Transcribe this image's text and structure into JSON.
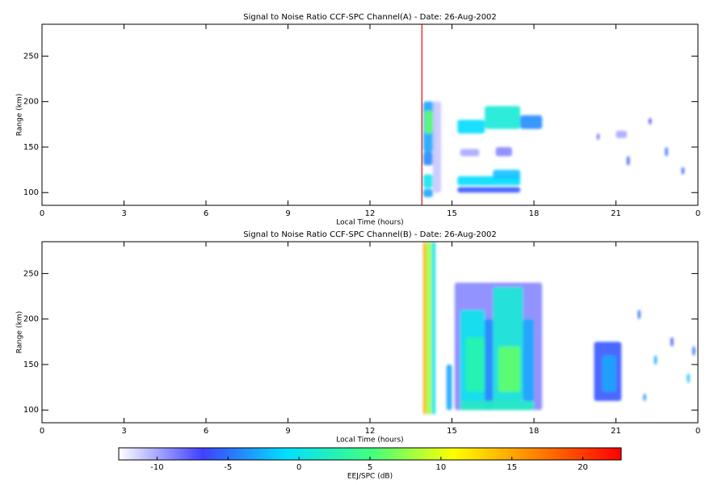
{
  "chart_data": [
    {
      "type": "heatmap",
      "title": "Signal to Noise Ratio CCF-SPC Channel(A) - Date: 26-Aug-2002",
      "x_label": "Local Time (hours)",
      "y_label": "Range (km)",
      "xlim": [
        0,
        24
      ],
      "xticks": [
        0,
        3,
        6,
        9,
        12,
        15,
        18,
        21,
        {
          "value": 24,
          "label": "0"
        }
      ],
      "ylim": [
        86,
        285
      ],
      "yticks": [
        100,
        150,
        200,
        250
      ],
      "marker_x": 13.9,
      "marker_color": "#ff0000",
      "cells": [
        [
          13.95,
          14.35,
          145,
          200,
          -3
        ],
        [
          14.0,
          14.3,
          165,
          190,
          6
        ],
        [
          13.95,
          14.3,
          130,
          145,
          -4
        ],
        [
          13.95,
          14.3,
          105,
          120,
          0
        ],
        [
          13.95,
          14.3,
          95,
          104,
          -3
        ],
        [
          14.3,
          14.6,
          100,
          200,
          -11
        ],
        [
          15.2,
          16.2,
          165,
          180,
          -1
        ],
        [
          16.2,
          17.5,
          170,
          195,
          1
        ],
        [
          17.5,
          18.3,
          170,
          185,
          -4
        ],
        [
          15.2,
          17.5,
          108,
          118,
          -1
        ],
        [
          16.5,
          17.5,
          115,
          125,
          -2
        ],
        [
          15.2,
          17.5,
          100,
          106,
          -6
        ],
        [
          16.6,
          17.2,
          140,
          150,
          -9
        ],
        [
          15.3,
          16.0,
          140,
          148,
          -10
        ],
        [
          20.3,
          20.4,
          158,
          165,
          -8
        ],
        [
          21.4,
          21.5,
          130,
          140,
          -6
        ],
        [
          22.2,
          22.3,
          175,
          182,
          -7
        ],
        [
          22.8,
          22.9,
          140,
          150,
          -5
        ],
        [
          23.4,
          23.5,
          120,
          128,
          -6
        ],
        [
          21.0,
          21.4,
          160,
          168,
          -10
        ]
      ]
    },
    {
      "type": "heatmap",
      "title": "Signal to Noise Ratio CCF-SPC Channel(B) - Date: 26-Aug-2002",
      "x_label": "Local Time (hours)",
      "y_label": "Range (km)",
      "xlim": [
        0,
        24
      ],
      "xticks": [
        0,
        3,
        6,
        9,
        12,
        15,
        18,
        21,
        {
          "value": 24,
          "label": "0"
        }
      ],
      "ylim": [
        86,
        285
      ],
      "yticks": [
        100,
        150,
        200,
        250
      ],
      "cells": [
        [
          14.25,
          14.4,
          95,
          285,
          0
        ],
        [
          14.05,
          14.25,
          95,
          285,
          8
        ],
        [
          13.95,
          14.05,
          95,
          285,
          15
        ],
        [
          14.8,
          15.0,
          100,
          150,
          -3
        ],
        [
          15.1,
          18.3,
          100,
          240,
          -9
        ],
        [
          15.3,
          16.2,
          110,
          210,
          0
        ],
        [
          15.5,
          16.2,
          120,
          180,
          3
        ],
        [
          16.2,
          16.5,
          100,
          200,
          -4
        ],
        [
          16.5,
          17.6,
          110,
          235,
          1
        ],
        [
          16.7,
          17.5,
          120,
          170,
          6
        ],
        [
          17.6,
          18.0,
          110,
          200,
          -3
        ],
        [
          15.3,
          18.0,
          100,
          110,
          2
        ],
        [
          20.2,
          21.2,
          110,
          175,
          -6
        ],
        [
          20.5,
          21.0,
          120,
          160,
          -3
        ],
        [
          21.8,
          21.9,
          200,
          210,
          -5
        ],
        [
          22.4,
          22.5,
          150,
          160,
          -3
        ],
        [
          23.0,
          23.1,
          170,
          180,
          -6
        ],
        [
          23.6,
          23.7,
          130,
          140,
          -2
        ],
        [
          22.0,
          22.1,
          110,
          118,
          -4
        ],
        [
          23.8,
          23.9,
          160,
          170,
          -5
        ]
      ]
    }
  ],
  "colorbar": {
    "label": "EEJ/SPC (dB)",
    "clim": [
      -12.7,
      22.7
    ],
    "ticks": [
      -10,
      -5,
      0,
      5,
      10,
      15,
      20
    ],
    "colormap": [
      "#ffffff",
      "#4040ff",
      "#00e0ff",
      "#40ff80",
      "#ffff00",
      "#ff8000",
      "#ff0000"
    ]
  }
}
